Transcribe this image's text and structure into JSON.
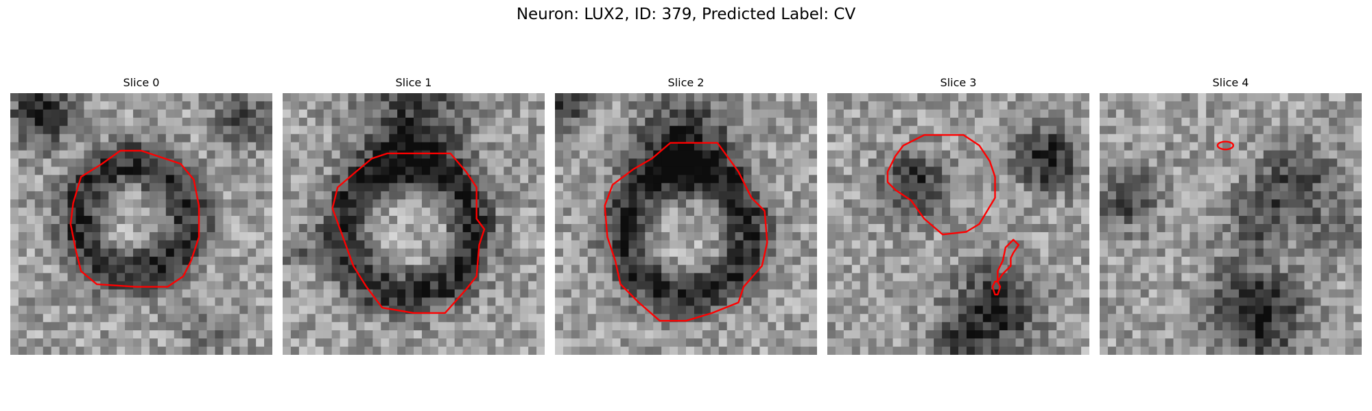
{
  "figure": {
    "title": "Neuron: LUX2, ID: 379, Predicted Label: CV",
    "contour_color": "#ff0000",
    "panels": [
      {
        "title": "Slice 0",
        "background": "grayscale microscopy patch with dark ring",
        "mask_color": "#ff0000"
      },
      {
        "title": "Slice 1",
        "background": "grayscale microscopy patch with dark ring",
        "mask_color": "#ff0000"
      },
      {
        "title": "Slice 2",
        "background": "grayscale microscopy patch with dark ring",
        "mask_color": "#ff0000"
      },
      {
        "title": "Slice 3",
        "background": "grayscale microscopy patch, multiple blobs",
        "mask_color": "#ff0000"
      },
      {
        "title": "Slice 4",
        "background": "grayscale microscopy patch, diffuse texture",
        "mask_color": "#ff0000"
      }
    ]
  }
}
